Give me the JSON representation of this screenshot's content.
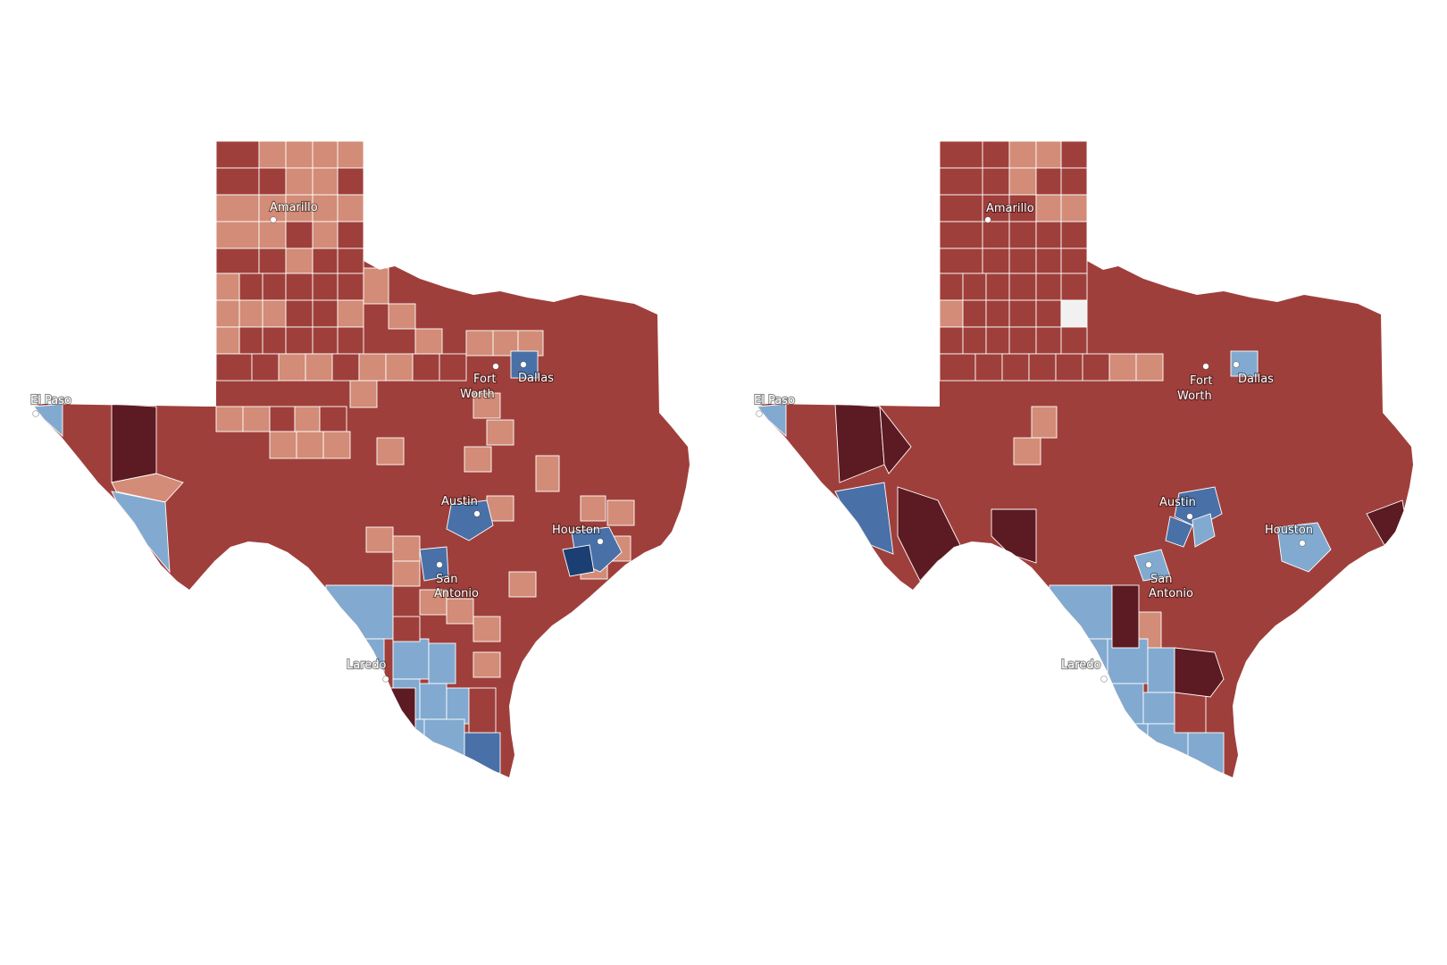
{
  "colors": {
    "background": "#ffffff",
    "county_border": "#ffffff",
    "blue_dark": "#1b3f73",
    "blue_mid": "#4a70a8",
    "blue_light": "#82aad0",
    "red_light": "#d28c77",
    "red_mid": "#9f3f3b",
    "red_dark": "#5c1a22",
    "neutral": "#f1f1f1"
  },
  "maps": [
    {
      "id": "left",
      "cities": [
        {
          "name": "Amarillo",
          "label": "Amarillo"
        },
        {
          "name": "El Paso",
          "label": "El Paso"
        },
        {
          "name": "Fort Worth",
          "label_line1": "Fort",
          "label_line2": "Worth"
        },
        {
          "name": "Dallas",
          "label": "Dallas"
        },
        {
          "name": "Austin",
          "label": "Austin"
        },
        {
          "name": "Houston",
          "label": "Houston"
        },
        {
          "name": "San Antonio",
          "label_line1": "San",
          "label_line2": "Antonio"
        },
        {
          "name": "Laredo",
          "label": "Laredo"
        }
      ]
    },
    {
      "id": "right",
      "cities": [
        {
          "name": "Amarillo",
          "label": "Amarillo"
        },
        {
          "name": "El Paso",
          "label": "El Paso"
        },
        {
          "name": "Fort Worth",
          "label_line1": "Fort",
          "label_line2": "Worth"
        },
        {
          "name": "Dallas",
          "label": "Dallas"
        },
        {
          "name": "Austin",
          "label": "Austin"
        },
        {
          "name": "Houston",
          "label": "Houston"
        },
        {
          "name": "San Antonio",
          "label_line1": "San",
          "label_line2": "Antonio"
        },
        {
          "name": "Laredo",
          "label": "Laredo"
        }
      ]
    }
  ]
}
